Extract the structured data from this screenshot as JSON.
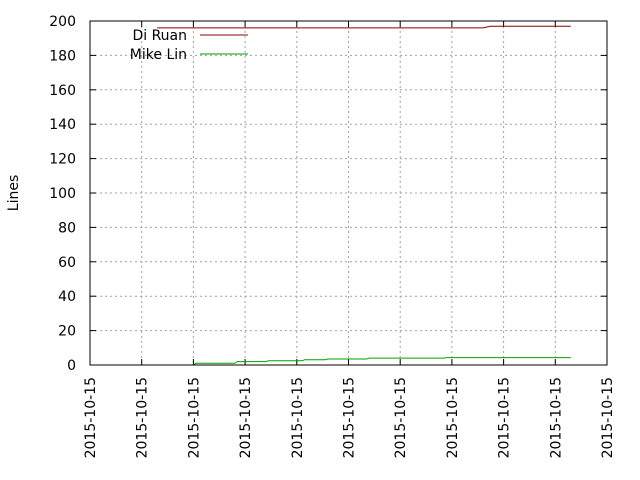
{
  "chart_data": {
    "type": "line",
    "title": "",
    "xlabel": "",
    "ylabel": "Lines",
    "ylim": [
      0,
      200
    ],
    "yticks": [
      0,
      20,
      40,
      60,
      80,
      100,
      120,
      140,
      160,
      180,
      200
    ],
    "xtick_labels": [
      "2015-10-15",
      "2015-10-15",
      "2015-10-15",
      "2015-10-15",
      "2015-10-15",
      "2015-10-15",
      "2015-10-15",
      "2015-10-15",
      "2015-10-15",
      "2015-10-15",
      "2015-10-15"
    ],
    "x_index_range": [
      0,
      10
    ],
    "grid": true,
    "legend_position": "top-left",
    "series": [
      {
        "name": "Di Ruan",
        "color": "#8b0000",
        "x": [
          1.3,
          7.6,
          7.75,
          9.3
        ],
        "y": [
          196,
          196,
          197,
          197
        ]
      },
      {
        "name": "Mike Lin",
        "color": "#00a000",
        "x": [
          1.35,
          2.0,
          2.05,
          2.8,
          2.85,
          3.4,
          3.45,
          4.1,
          4.15,
          4.55,
          4.6,
          5.35,
          5.4,
          6.85,
          6.9,
          9.3
        ],
        "y": [
          0,
          0,
          1,
          1,
          2,
          2,
          2.5,
          2.5,
          3,
          3,
          3.5,
          3.5,
          4,
          4,
          4.3,
          4.3
        ]
      }
    ]
  }
}
